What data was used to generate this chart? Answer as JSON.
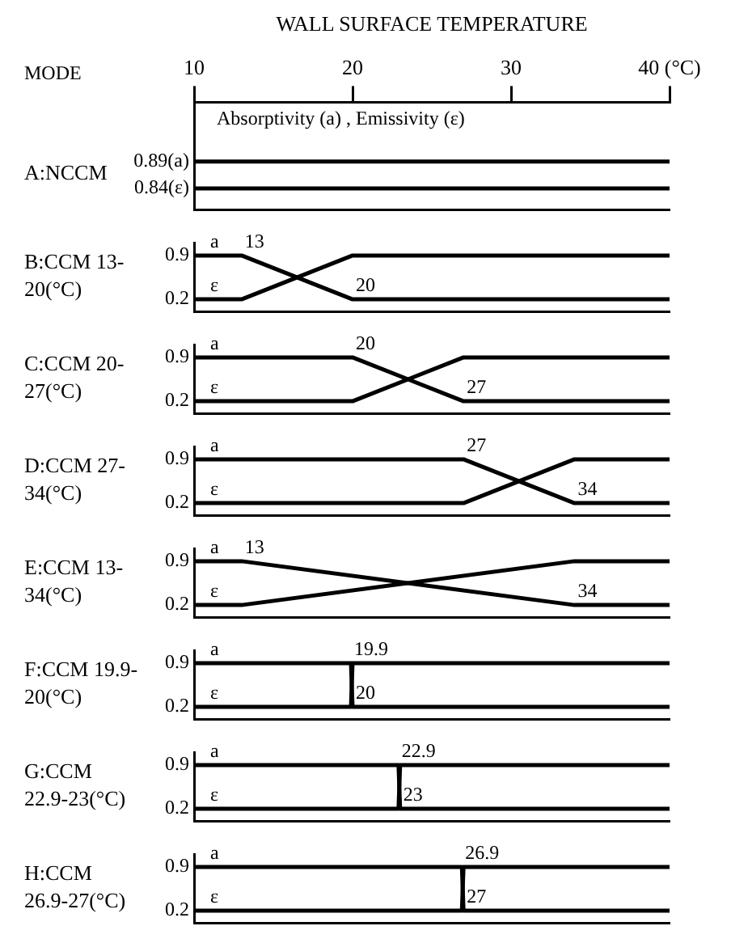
{
  "chart_data": [
    {
      "type": "line",
      "title": "A:NCCM",
      "xlabel": "WALL SURFACE TEMPERATURE",
      "ylabel": "Absorptivity (a) , Emissivity (ε)",
      "annotations": [
        "MODE"
      ],
      "xlim": [
        10,
        40
      ],
      "xticks": [
        10,
        20,
        30,
        {
          "value": 40,
          "label": "40 (°C)"
        }
      ],
      "ylim": [
        0.8,
        1.0
      ],
      "yticks": [
        {
          "value": 0.89,
          "label": "0.89(a)"
        },
        {
          "value": 0.84,
          "label": "0.84(ε)"
        }
      ],
      "grid": false,
      "legend": false,
      "marker": "none",
      "x": [
        10,
        40
      ],
      "series": [
        {
          "color": "#000000",
          "values": [
            0.89,
            0.89
          ]
        },
        {
          "color": "#000000",
          "values": [
            0.84,
            0.84
          ]
        }
      ]
    },
    {
      "type": "line",
      "title": "B:CCM 13-20(°C)",
      "annotations": [
        {
          "text": "13",
          "x": 13,
          "y": 0.9
        },
        {
          "text": "20",
          "x": 20,
          "y": 0.2
        }
      ],
      "xlim": [
        10,
        40
      ],
      "ylim": [
        0,
        1.1
      ],
      "yticks": [
        0.9,
        0.2
      ],
      "tick_labels": "y",
      "grid": false,
      "legend": false,
      "marker": "none",
      "x": [
        10,
        13,
        20,
        40
      ],
      "series": [
        {
          "name": "a",
          "color": "#000000",
          "values": [
            0.9,
            0.9,
            0.2,
            0.2
          ]
        },
        {
          "name": "ε",
          "color": "#000000",
          "values": [
            0.2,
            0.2,
            0.9,
            0.9
          ]
        }
      ]
    },
    {
      "type": "line",
      "title": "C:CCM 20-27(°C)",
      "annotations": [
        {
          "text": "20",
          "x": 20,
          "y": 0.9
        },
        {
          "text": "27",
          "x": 27,
          "y": 0.2
        }
      ],
      "xlim": [
        10,
        40
      ],
      "ylim": [
        0,
        1.1
      ],
      "yticks": [
        0.9,
        0.2
      ],
      "tick_labels": "y",
      "grid": false,
      "legend": false,
      "marker": "none",
      "x": [
        10,
        20,
        27,
        40
      ],
      "series": [
        {
          "name": "a",
          "color": "#000000",
          "values": [
            0.9,
            0.9,
            0.2,
            0.2
          ]
        },
        {
          "name": "ε",
          "color": "#000000",
          "values": [
            0.2,
            0.2,
            0.9,
            0.9
          ]
        }
      ]
    },
    {
      "type": "line",
      "title": "D:CCM 27-34(°C)",
      "annotations": [
        {
          "text": "27",
          "x": 27,
          "y": 0.9
        },
        {
          "text": "34",
          "x": 34,
          "y": 0.2
        }
      ],
      "xlim": [
        10,
        40
      ],
      "ylim": [
        0,
        1.1
      ],
      "yticks": [
        0.9,
        0.2
      ],
      "tick_labels": "y",
      "grid": false,
      "legend": false,
      "marker": "none",
      "x": [
        10,
        27,
        34,
        40
      ],
      "series": [
        {
          "name": "a",
          "color": "#000000",
          "values": [
            0.9,
            0.9,
            0.2,
            0.2
          ]
        },
        {
          "name": "ε",
          "color": "#000000",
          "values": [
            0.2,
            0.2,
            0.9,
            0.9
          ]
        }
      ]
    },
    {
      "type": "line",
      "title": "E:CCM 13-34(°C)",
      "annotations": [
        {
          "text": "13",
          "x": 13,
          "y": 0.9
        },
        {
          "text": "34",
          "x": 34,
          "y": 0.2
        }
      ],
      "xlim": [
        10,
        40
      ],
      "ylim": [
        0,
        1.1
      ],
      "yticks": [
        0.9,
        0.2
      ],
      "tick_labels": "y",
      "grid": false,
      "legend": false,
      "marker": "none",
      "x": [
        10,
        13,
        34,
        40
      ],
      "series": [
        {
          "name": "a",
          "color": "#000000",
          "values": [
            0.9,
            0.9,
            0.2,
            0.2
          ]
        },
        {
          "name": "ε",
          "color": "#000000",
          "values": [
            0.2,
            0.2,
            0.9,
            0.9
          ]
        }
      ]
    },
    {
      "type": "line",
      "title": "F:CCM 19.9-20(°C)",
      "annotations": [
        {
          "text": "19.9",
          "x": 19.9,
          "y": 0.9
        },
        {
          "text": "20",
          "x": 20,
          "y": 0.2
        }
      ],
      "xlim": [
        10,
        40
      ],
      "ylim": [
        0,
        1.1
      ],
      "yticks": [
        0.9,
        0.2
      ],
      "tick_labels": "y",
      "grid": false,
      "legend": false,
      "marker": "none",
      "x": [
        10,
        19.9,
        20,
        40
      ],
      "series": [
        {
          "name": "a",
          "color": "#000000",
          "values": [
            0.9,
            0.9,
            0.2,
            0.2
          ]
        },
        {
          "name": "ε",
          "color": "#000000",
          "values": [
            0.2,
            0.2,
            0.9,
            0.9
          ]
        }
      ]
    },
    {
      "type": "line",
      "title": "G:CCM 22.9-23(°C)",
      "annotations": [
        {
          "text": "22.9",
          "x": 22.9,
          "y": 0.9
        },
        {
          "text": "23",
          "x": 23,
          "y": 0.2
        }
      ],
      "xlim": [
        10,
        40
      ],
      "ylim": [
        0,
        1.1
      ],
      "yticks": [
        0.9,
        0.2
      ],
      "tick_labels": "y",
      "grid": false,
      "legend": false,
      "marker": "none",
      "x": [
        10,
        22.9,
        23,
        40
      ],
      "series": [
        {
          "name": "a",
          "color": "#000000",
          "values": [
            0.9,
            0.9,
            0.2,
            0.2
          ]
        },
        {
          "name": "ε",
          "color": "#000000",
          "values": [
            0.2,
            0.2,
            0.9,
            0.9
          ]
        }
      ]
    },
    {
      "type": "line",
      "title": "H:CCM 26.9-27(°C)",
      "annotations": [
        {
          "text": "26.9",
          "x": 26.9,
          "y": 0.9
        },
        {
          "text": "27",
          "x": 27,
          "y": 0.2
        }
      ],
      "xlim": [
        10,
        40
      ],
      "ylim": [
        0,
        1.1
      ],
      "yticks": [
        0.9,
        0.2
      ],
      "tick_labels": "y",
      "grid": false,
      "legend": false,
      "marker": "none",
      "x": [
        10,
        26.9,
        27,
        40
      ],
      "series": [
        {
          "name": "a",
          "color": "#000000",
          "values": [
            0.9,
            0.9,
            0.2,
            0.2
          ]
        },
        {
          "name": "ε",
          "color": "#000000",
          "values": [
            0.2,
            0.2,
            0.9,
            0.9
          ]
        }
      ]
    }
  ]
}
